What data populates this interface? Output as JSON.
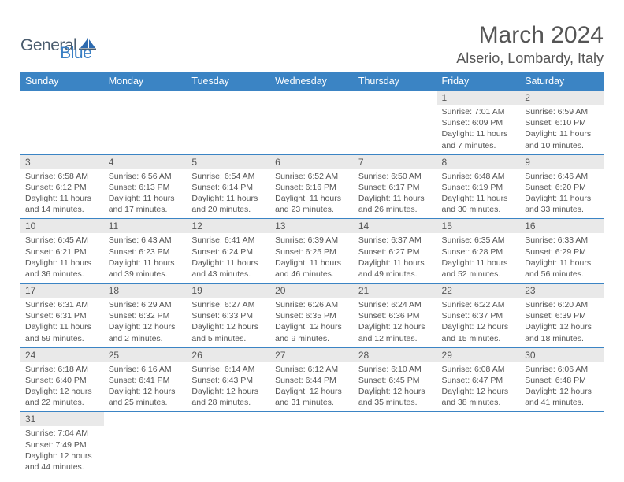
{
  "brand": {
    "general": "General",
    "blue": "Blue"
  },
  "title": "March 2024",
  "location": "Alserio, Lombardy, Italy",
  "colors": {
    "header_bg": "#3b84c4",
    "header_fg": "#ffffff",
    "daynum_bg": "#e9e9e9",
    "rule": "#3b84c4",
    "text": "#555555",
    "bg": "#ffffff"
  },
  "weekdays": [
    "Sunday",
    "Monday",
    "Tuesday",
    "Wednesday",
    "Thursday",
    "Friday",
    "Saturday"
  ],
  "first_weekday_index": 5,
  "days": [
    {
      "n": 1,
      "sunrise": "7:01 AM",
      "sunset": "6:09 PM",
      "daylight": "11 hours and 7 minutes."
    },
    {
      "n": 2,
      "sunrise": "6:59 AM",
      "sunset": "6:10 PM",
      "daylight": "11 hours and 10 minutes."
    },
    {
      "n": 3,
      "sunrise": "6:58 AM",
      "sunset": "6:12 PM",
      "daylight": "11 hours and 14 minutes."
    },
    {
      "n": 4,
      "sunrise": "6:56 AM",
      "sunset": "6:13 PM",
      "daylight": "11 hours and 17 minutes."
    },
    {
      "n": 5,
      "sunrise": "6:54 AM",
      "sunset": "6:14 PM",
      "daylight": "11 hours and 20 minutes."
    },
    {
      "n": 6,
      "sunrise": "6:52 AM",
      "sunset": "6:16 PM",
      "daylight": "11 hours and 23 minutes."
    },
    {
      "n": 7,
      "sunrise": "6:50 AM",
      "sunset": "6:17 PM",
      "daylight": "11 hours and 26 minutes."
    },
    {
      "n": 8,
      "sunrise": "6:48 AM",
      "sunset": "6:19 PM",
      "daylight": "11 hours and 30 minutes."
    },
    {
      "n": 9,
      "sunrise": "6:46 AM",
      "sunset": "6:20 PM",
      "daylight": "11 hours and 33 minutes."
    },
    {
      "n": 10,
      "sunrise": "6:45 AM",
      "sunset": "6:21 PM",
      "daylight": "11 hours and 36 minutes."
    },
    {
      "n": 11,
      "sunrise": "6:43 AM",
      "sunset": "6:23 PM",
      "daylight": "11 hours and 39 minutes."
    },
    {
      "n": 12,
      "sunrise": "6:41 AM",
      "sunset": "6:24 PM",
      "daylight": "11 hours and 43 minutes."
    },
    {
      "n": 13,
      "sunrise": "6:39 AM",
      "sunset": "6:25 PM",
      "daylight": "11 hours and 46 minutes."
    },
    {
      "n": 14,
      "sunrise": "6:37 AM",
      "sunset": "6:27 PM",
      "daylight": "11 hours and 49 minutes."
    },
    {
      "n": 15,
      "sunrise": "6:35 AM",
      "sunset": "6:28 PM",
      "daylight": "11 hours and 52 minutes."
    },
    {
      "n": 16,
      "sunrise": "6:33 AM",
      "sunset": "6:29 PM",
      "daylight": "11 hours and 56 minutes."
    },
    {
      "n": 17,
      "sunrise": "6:31 AM",
      "sunset": "6:31 PM",
      "daylight": "11 hours and 59 minutes."
    },
    {
      "n": 18,
      "sunrise": "6:29 AM",
      "sunset": "6:32 PM",
      "daylight": "12 hours and 2 minutes."
    },
    {
      "n": 19,
      "sunrise": "6:27 AM",
      "sunset": "6:33 PM",
      "daylight": "12 hours and 5 minutes."
    },
    {
      "n": 20,
      "sunrise": "6:26 AM",
      "sunset": "6:35 PM",
      "daylight": "12 hours and 9 minutes."
    },
    {
      "n": 21,
      "sunrise": "6:24 AM",
      "sunset": "6:36 PM",
      "daylight": "12 hours and 12 minutes."
    },
    {
      "n": 22,
      "sunrise": "6:22 AM",
      "sunset": "6:37 PM",
      "daylight": "12 hours and 15 minutes."
    },
    {
      "n": 23,
      "sunrise": "6:20 AM",
      "sunset": "6:39 PM",
      "daylight": "12 hours and 18 minutes."
    },
    {
      "n": 24,
      "sunrise": "6:18 AM",
      "sunset": "6:40 PM",
      "daylight": "12 hours and 22 minutes."
    },
    {
      "n": 25,
      "sunrise": "6:16 AM",
      "sunset": "6:41 PM",
      "daylight": "12 hours and 25 minutes."
    },
    {
      "n": 26,
      "sunrise": "6:14 AM",
      "sunset": "6:43 PM",
      "daylight": "12 hours and 28 minutes."
    },
    {
      "n": 27,
      "sunrise": "6:12 AM",
      "sunset": "6:44 PM",
      "daylight": "12 hours and 31 minutes."
    },
    {
      "n": 28,
      "sunrise": "6:10 AM",
      "sunset": "6:45 PM",
      "daylight": "12 hours and 35 minutes."
    },
    {
      "n": 29,
      "sunrise": "6:08 AM",
      "sunset": "6:47 PM",
      "daylight": "12 hours and 38 minutes."
    },
    {
      "n": 30,
      "sunrise": "6:06 AM",
      "sunset": "6:48 PM",
      "daylight": "12 hours and 41 minutes."
    },
    {
      "n": 31,
      "sunrise": "7:04 AM",
      "sunset": "7:49 PM",
      "daylight": "12 hours and 44 minutes."
    }
  ],
  "labels": {
    "sunrise": "Sunrise:",
    "sunset": "Sunset:",
    "daylight": "Daylight:"
  }
}
